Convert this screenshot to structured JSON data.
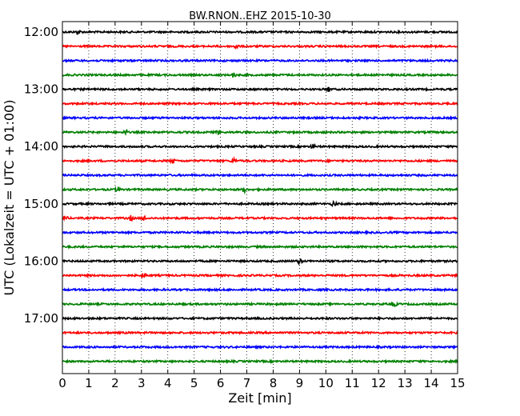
{
  "chart_data": {
    "type": "line",
    "title": "BW.RNON..EHZ 2015-10-30",
    "xlabel": "Zeit  [min]",
    "ylabel": "UTC (Lokalzeit = UTC + 01:00)",
    "xlim": [
      0,
      15
    ],
    "x_ticks": [
      "0",
      "1",
      "2",
      "3",
      "4",
      "5",
      "6",
      "7",
      "8",
      "9",
      "10",
      "11",
      "12",
      "13",
      "14",
      "15"
    ],
    "y_ticks": [
      "12:00",
      "13:00",
      "14:00",
      "15:00",
      "16:00",
      "17:00"
    ],
    "grid": "x dotted",
    "colors": [
      "#000000",
      "#ff0000",
      "#0000ff",
      "#008000"
    ],
    "traces": [
      {
        "start": "12:00",
        "color": "#000000",
        "events": [
          0.6
        ]
      },
      {
        "start": "12:15",
        "color": "#ff0000",
        "events": [
          6.6
        ]
      },
      {
        "start": "12:30",
        "color": "#0000ff",
        "events": []
      },
      {
        "start": "12:45",
        "color": "#008000",
        "events": [
          6.5
        ]
      },
      {
        "start": "13:00",
        "color": "#000000",
        "events": [
          10.1
        ]
      },
      {
        "start": "13:15",
        "color": "#ff0000",
        "events": []
      },
      {
        "start": "13:30",
        "color": "#0000ff",
        "events": []
      },
      {
        "start": "13:45",
        "color": "#008000",
        "events": [
          2.4,
          5.9
        ]
      },
      {
        "start": "14:00",
        "color": "#000000",
        "events": [
          9.5
        ]
      },
      {
        "start": "14:15",
        "color": "#ff0000",
        "events": [
          4.2,
          6.5
        ]
      },
      {
        "start": "14:30",
        "color": "#0000ff",
        "events": []
      },
      {
        "start": "14:45",
        "color": "#008000",
        "events": [
          2.1,
          6.9
        ]
      },
      {
        "start": "15:00",
        "color": "#000000",
        "events": [
          10.3
        ]
      },
      {
        "start": "15:15",
        "color": "#ff0000",
        "events": [
          0.1,
          2.6,
          3.1
        ]
      },
      {
        "start": "15:30",
        "color": "#0000ff",
        "events": []
      },
      {
        "start": "15:45",
        "color": "#008000",
        "events": []
      },
      {
        "start": "16:00",
        "color": "#000000",
        "events": [
          9.0
        ]
      },
      {
        "start": "16:15",
        "color": "#ff0000",
        "events": [
          3.1
        ]
      },
      {
        "start": "16:30",
        "color": "#0000ff",
        "events": []
      },
      {
        "start": "16:45",
        "color": "#008000",
        "events": [
          12.6
        ]
      },
      {
        "start": "17:00",
        "color": "#000000",
        "events": []
      },
      {
        "start": "17:15",
        "color": "#ff0000",
        "events": []
      },
      {
        "start": "17:30",
        "color": "#0000ff",
        "events": []
      },
      {
        "start": "17:45",
        "color": "#008000",
        "events": []
      }
    ]
  }
}
